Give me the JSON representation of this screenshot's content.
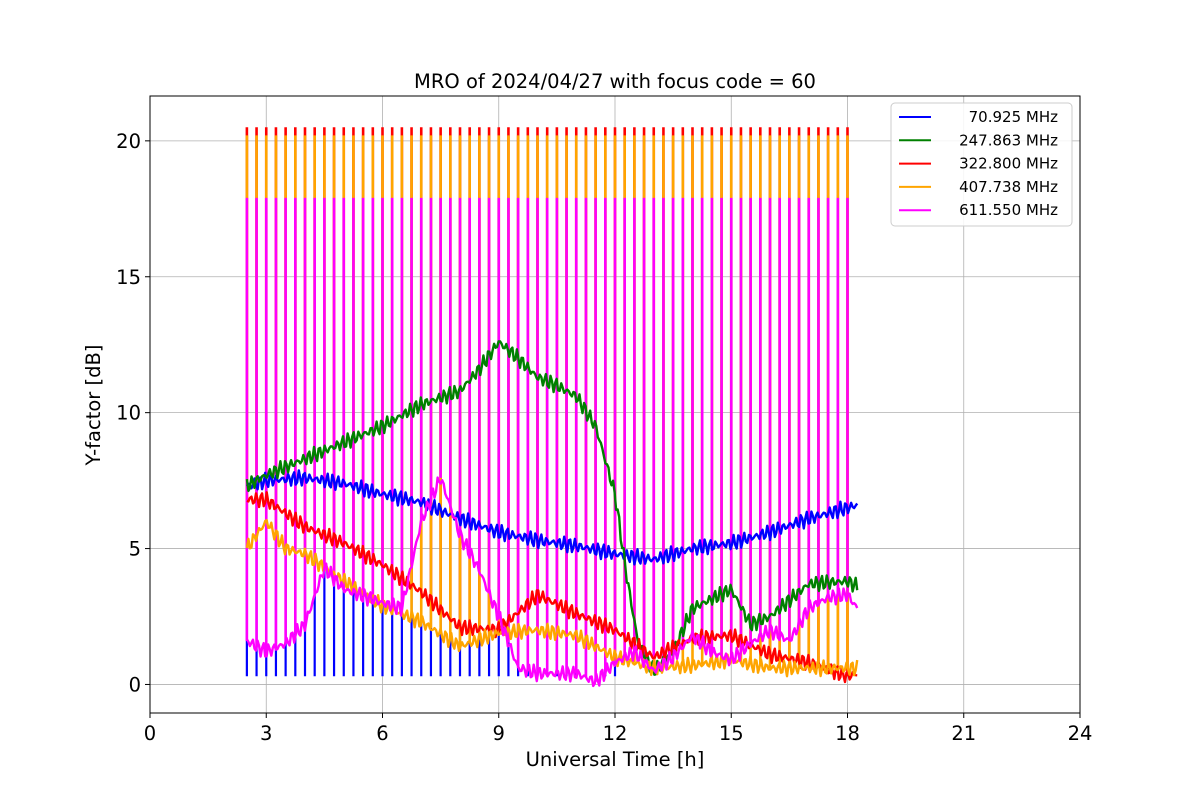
{
  "chart_data": {
    "type": "line",
    "title": "MRO of 2024/04/27 with focus code = 60",
    "xlabel": "Universal Time [h]",
    "ylabel": "Y-factor [dB]",
    "xlim": [
      0,
      24
    ],
    "ylim": [
      -1.05,
      21.65
    ],
    "xticks": [
      0,
      3,
      6,
      9,
      12,
      15,
      18,
      21,
      24
    ],
    "xtick_labels": [
      "0",
      "3",
      "6",
      "9",
      "12",
      "15",
      "18",
      "21",
      "24"
    ],
    "yticks": [
      0,
      5,
      10,
      15,
      20
    ],
    "ytick_labels": [
      "0",
      "5",
      "10",
      "15",
      "20"
    ],
    "grid": true,
    "legend_position": "upper right",
    "calibration_cycle": {
      "start_h": 2.5,
      "end_h": 18.1,
      "period_h": 0.25,
      "description": "periodic calibration spikes present in all series"
    },
    "series": [
      {
        "name": "70.925 MHz",
        "color": "#0000ff",
        "baseline": {
          "x": [
            2.5,
            3.0,
            4.0,
            5.0,
            6.0,
            7.0,
            8.0,
            9.0,
            10.0,
            11.0,
            12.0,
            13.0,
            14.0,
            15.0,
            16.0,
            17.0,
            18.0,
            18.25
          ],
          "y": [
            7.3,
            7.5,
            7.6,
            7.4,
            7.0,
            6.7,
            6.1,
            5.6,
            5.3,
            5.1,
            4.8,
            4.6,
            5.0,
            5.2,
            5.6,
            6.1,
            6.5,
            6.6
          ]
        },
        "spike_low": 0.3,
        "spike_low_until_h": 12.0
      },
      {
        "name": "247.863 MHz",
        "color": "#008000",
        "baseline": {
          "x": [
            2.5,
            3.0,
            4.0,
            5.0,
            6.0,
            7.0,
            8.0,
            8.5,
            9.0,
            9.5,
            10.0,
            10.5,
            11.0,
            11.5,
            12.0,
            12.3,
            12.6,
            13.0,
            13.5,
            14.0,
            15.0,
            15.5,
            16.0,
            17.0,
            18.0,
            18.25
          ],
          "y": [
            7.3,
            7.7,
            8.3,
            8.9,
            9.5,
            10.3,
            10.8,
            11.6,
            12.6,
            12.0,
            11.3,
            11.0,
            10.6,
            9.5,
            7.0,
            4.0,
            1.5,
            0.5,
            1.2,
            2.8,
            3.5,
            2.2,
            2.5,
            3.7,
            3.8,
            3.6
          ]
        }
      },
      {
        "name": "322.800 MHz",
        "color": "#ff0000",
        "baseline": {
          "x": [
            2.5,
            3.0,
            4.0,
            5.0,
            6.0,
            7.0,
            8.0,
            9.0,
            10.0,
            11.0,
            12.0,
            13.0,
            14.0,
            15.0,
            16.0,
            17.0,
            18.0,
            18.25
          ],
          "y": [
            6.8,
            6.8,
            5.8,
            5.2,
            4.4,
            3.4,
            2.1,
            2.0,
            3.3,
            2.6,
            2.0,
            1.0,
            1.7,
            1.8,
            1.1,
            0.8,
            0.3,
            0.4
          ]
        },
        "spike_peak": 20.5
      },
      {
        "name": "407.738 MHz",
        "color": "#ffa500",
        "baseline": {
          "x": [
            2.5,
            3.0,
            3.5,
            4.0,
            5.0,
            6.0,
            7.0,
            8.0,
            9.0,
            10.0,
            11.0,
            12.0,
            13.0,
            14.0,
            15.0,
            16.0,
            17.0,
            18.0,
            18.25
          ],
          "y": [
            5.0,
            6.0,
            5.0,
            4.8,
            3.8,
            2.9,
            2.3,
            1.4,
            1.9,
            2.0,
            1.8,
            1.0,
            0.6,
            0.7,
            0.9,
            0.6,
            0.6,
            0.6,
            0.6
          ]
        },
        "spike_peak": 20.2
      },
      {
        "name": "611.550 MHz",
        "color": "#ff00ff",
        "baseline": {
          "x": [
            2.5,
            3.0,
            3.5,
            4.0,
            4.5,
            5.0,
            6.0,
            6.5,
            7.0,
            7.5,
            8.0,
            8.5,
            9.0,
            9.5,
            10.0,
            11.0,
            11.5,
            12.0,
            12.5,
            13.0,
            13.5,
            14.0,
            14.5,
            15.0,
            15.5,
            16.0,
            16.5,
            17.0,
            17.5,
            18.0,
            18.25
          ],
          "y": [
            1.6,
            1.2,
            1.5,
            2.2,
            4.3,
            3.5,
            3.0,
            2.8,
            6.0,
            7.6,
            5.5,
            4.2,
            2.5,
            0.6,
            0.4,
            0.4,
            0.1,
            0.8,
            1.2,
            0.5,
            1.0,
            1.8,
            1.2,
            0.9,
            1.5,
            2.0,
            1.6,
            2.8,
            3.2,
            3.3,
            2.8
          ]
        },
        "spike_peak": 17.9
      }
    ]
  }
}
